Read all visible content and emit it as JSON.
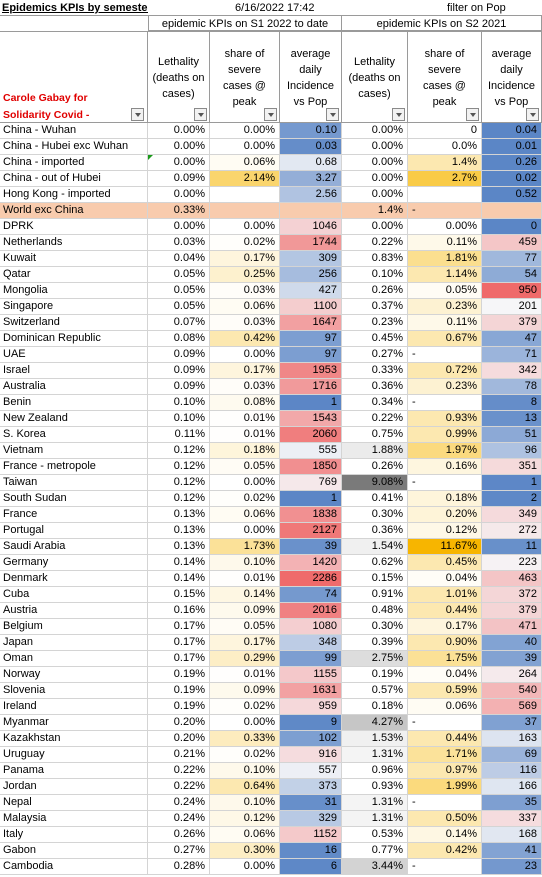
{
  "sheet": {
    "title": "Epidemics KPIs by semester",
    "date": "6/16/2022 17:42",
    "filter_note": "filter on Pop",
    "group1": "epidemic KPIs on S1 2022 to date",
    "group2": "epidemic KPIs on S2 2021",
    "author": "Carole Gabay for Solidarity Covid - Expats in China",
    "col_lethality": "Lethality (deaths on cases)",
    "col_severe": "share of severe cases @ peak",
    "col_incidence": "average daily Incidence vs Pop"
  },
  "colors": {
    "world_row": "#f8cbad",
    "header_red": "#e00000"
  },
  "rows": [
    {
      "name": "China - Wuhan",
      "l1": "0.00%",
      "s1": "0.00%",
      "i1": "0.10",
      "l2": "0.00%",
      "s2": "0",
      "i2": "0.04"
    },
    {
      "name": "China - Hubei exc Wuhan",
      "l1": "0.00%",
      "s1": "0.00%",
      "i1": "0.03",
      "l2": "0.00%",
      "s2": "0.0%",
      "i2": "0.01"
    },
    {
      "name": "China - imported",
      "l1": "0.00%",
      "s1": "0.06%",
      "i1": "0.68",
      "l2": "0.00%",
      "s2": "1.4%",
      "i2": "0.26"
    },
    {
      "name": "China - out of Hubei",
      "l1": "0.09%",
      "s1": "2.14%",
      "i1": "3.27",
      "l2": "0.00%",
      "s2": "2.7%",
      "i2": "0.02"
    },
    {
      "name": "Hong Kong - imported",
      "l1": "0.00%",
      "s1": "",
      "i1": "2.56",
      "l2": "0.00%",
      "s2": "",
      "i2": "0.52"
    },
    {
      "name": "World exc China",
      "l1": "0.33%",
      "s1": "",
      "i1": "",
      "l2": "1.4%",
      "s2": "-",
      "i2": ""
    },
    {
      "name": "DPRK",
      "l1": "0.00%",
      "s1": "0.00%",
      "i1": "1046",
      "l2": "0.00%",
      "s2": "0.00%",
      "i2": "0"
    },
    {
      "name": "Netherlands",
      "l1": "0.03%",
      "s1": "0.02%",
      "i1": "1744",
      "l2": "0.22%",
      "s2": "0.11%",
      "i2": "459"
    },
    {
      "name": "Kuwait",
      "l1": "0.04%",
      "s1": "0.17%",
      "i1": "309",
      "l2": "0.83%",
      "s2": "1.81%",
      "i2": "77"
    },
    {
      "name": "Qatar",
      "l1": "0.05%",
      "s1": "0.25%",
      "i1": "256",
      "l2": "0.10%",
      "s2": "1.14%",
      "i2": "54"
    },
    {
      "name": "Mongolia",
      "l1": "0.05%",
      "s1": "0.03%",
      "i1": "427",
      "l2": "0.26%",
      "s2": "0.05%",
      "i2": "950"
    },
    {
      "name": "Singapore",
      "l1": "0.05%",
      "s1": "0.06%",
      "i1": "1100",
      "l2": "0.37%",
      "s2": "0.23%",
      "i2": "201"
    },
    {
      "name": "Switzerland",
      "l1": "0.07%",
      "s1": "0.03%",
      "i1": "1647",
      "l2": "0.23%",
      "s2": "0.11%",
      "i2": "379"
    },
    {
      "name": "Dominican Republic",
      "l1": "0.08%",
      "s1": "0.42%",
      "i1": "97",
      "l2": "0.45%",
      "s2": "0.67%",
      "i2": "47"
    },
    {
      "name": "UAE",
      "l1": "0.09%",
      "s1": "0.00%",
      "i1": "97",
      "l2": "0.27%",
      "s2": "-",
      "i2": "71"
    },
    {
      "name": "Israel",
      "l1": "0.09%",
      "s1": "0.17%",
      "i1": "1953",
      "l2": "0.33%",
      "s2": "0.72%",
      "i2": "342"
    },
    {
      "name": "Australia",
      "l1": "0.09%",
      "s1": "0.03%",
      "i1": "1716",
      "l2": "0.36%",
      "s2": "0.23%",
      "i2": "78"
    },
    {
      "name": "Benin",
      "l1": "0.10%",
      "s1": "0.08%",
      "i1": "1",
      "l2": "0.34%",
      "s2": "-",
      "i2": "8"
    },
    {
      "name": "New Zealand",
      "l1": "0.10%",
      "s1": "0.01%",
      "i1": "1543",
      "l2": "0.22%",
      "s2": "0.93%",
      "i2": "13"
    },
    {
      "name": "S. Korea",
      "l1": "0.11%",
      "s1": "0.01%",
      "i1": "2060",
      "l2": "0.75%",
      "s2": "0.99%",
      "i2": "51"
    },
    {
      "name": "Vietnam",
      "l1": "0.12%",
      "s1": "0.18%",
      "i1": "555",
      "l2": "1.88%",
      "s2": "1.97%",
      "i2": "96"
    },
    {
      "name": "France - metropole",
      "l1": "0.12%",
      "s1": "0.05%",
      "i1": "1850",
      "l2": "0.26%",
      "s2": "0.16%",
      "i2": "351"
    },
    {
      "name": "Taiwan",
      "l1": "0.12%",
      "s1": "0.00%",
      "i1": "769",
      "l2": "9.08%",
      "s2": "-",
      "i2": "1"
    },
    {
      "name": "South Sudan",
      "l1": "0.12%",
      "s1": "0.02%",
      "i1": "1",
      "l2": "0.41%",
      "s2": "0.18%",
      "i2": "2"
    },
    {
      "name": "France",
      "l1": "0.13%",
      "s1": "0.06%",
      "i1": "1838",
      "l2": "0.30%",
      "s2": "0.20%",
      "i2": "349"
    },
    {
      "name": "Portugal",
      "l1": "0.13%",
      "s1": "0.00%",
      "i1": "2127",
      "l2": "0.36%",
      "s2": "0.12%",
      "i2": "272"
    },
    {
      "name": "Saudi Arabia",
      "l1": "0.13%",
      "s1": "1.73%",
      "i1": "39",
      "l2": "1.54%",
      "s2": "11.67%",
      "i2": "11"
    },
    {
      "name": "Germany",
      "l1": "0.14%",
      "s1": "0.10%",
      "i1": "1420",
      "l2": "0.62%",
      "s2": "0.45%",
      "i2": "223"
    },
    {
      "name": "Denmark",
      "l1": "0.14%",
      "s1": "0.01%",
      "i1": "2286",
      "l2": "0.15%",
      "s2": "0.04%",
      "i2": "463"
    },
    {
      "name": "Cuba",
      "l1": "0.15%",
      "s1": "0.14%",
      "i1": "74",
      "l2": "0.91%",
      "s2": "1.01%",
      "i2": "372"
    },
    {
      "name": "Austria",
      "l1": "0.16%",
      "s1": "0.09%",
      "i1": "2016",
      "l2": "0.48%",
      "s2": "0.44%",
      "i2": "379"
    },
    {
      "name": "Belgium",
      "l1": "0.17%",
      "s1": "0.05%",
      "i1": "1080",
      "l2": "0.30%",
      "s2": "0.17%",
      "i2": "471"
    },
    {
      "name": "Japan",
      "l1": "0.17%",
      "s1": "0.17%",
      "i1": "348",
      "l2": "0.39%",
      "s2": "0.90%",
      "i2": "40"
    },
    {
      "name": "Oman",
      "l1": "0.17%",
      "s1": "0.29%",
      "i1": "99",
      "l2": "2.75%",
      "s2": "1.75%",
      "i2": "39"
    },
    {
      "name": "Norway",
      "l1": "0.19%",
      "s1": "0.01%",
      "i1": "1155",
      "l2": "0.19%",
      "s2": "0.04%",
      "i2": "264"
    },
    {
      "name": "Slovenia",
      "l1": "0.19%",
      "s1": "0.09%",
      "i1": "1631",
      "l2": "0.57%",
      "s2": "0.59%",
      "i2": "540"
    },
    {
      "name": "Ireland",
      "l1": "0.19%",
      "s1": "0.02%",
      "i1": "959",
      "l2": "0.18%",
      "s2": "0.06%",
      "i2": "569"
    },
    {
      "name": "Myanmar",
      "l1": "0.20%",
      "s1": "0.00%",
      "i1": "9",
      "l2": "4.27%",
      "s2": "-",
      "i2": "37"
    },
    {
      "name": "Kazakhstan",
      "l1": "0.20%",
      "s1": "0.33%",
      "i1": "102",
      "l2": "1.53%",
      "s2": "0.44%",
      "i2": "163"
    },
    {
      "name": "Uruguay",
      "l1": "0.21%",
      "s1": "0.02%",
      "i1": "916",
      "l2": "1.31%",
      "s2": "1.71%",
      "i2": "69"
    },
    {
      "name": "Panama",
      "l1": "0.22%",
      "s1": "0.10%",
      "i1": "557",
      "l2": "0.96%",
      "s2": "0.97%",
      "i2": "116"
    },
    {
      "name": "Jordan",
      "l1": "0.22%",
      "s1": "0.64%",
      "i1": "373",
      "l2": "0.93%",
      "s2": "1.99%",
      "i2": "166"
    },
    {
      "name": "Nepal",
      "l1": "0.24%",
      "s1": "0.10%",
      "i1": "31",
      "l2": "1.31%",
      "s2": "-",
      "i2": "35"
    },
    {
      "name": "Malaysia",
      "l1": "0.24%",
      "s1": "0.12%",
      "i1": "329",
      "l2": "1.31%",
      "s2": "0.50%",
      "i2": "337"
    },
    {
      "name": "Italy",
      "l1": "0.26%",
      "s1": "0.06%",
      "i1": "1152",
      "l2": "0.53%",
      "s2": "0.14%",
      "i2": "168"
    },
    {
      "name": "Gabon",
      "l1": "0.27%",
      "s1": "0.30%",
      "i1": "16",
      "l2": "0.77%",
      "s2": "0.42%",
      "i2": "41"
    },
    {
      "name": "Cambodia",
      "l1": "0.28%",
      "s1": "0.00%",
      "i1": "6",
      "l2": "3.44%",
      "s2": "-",
      "i2": "23"
    }
  ]
}
